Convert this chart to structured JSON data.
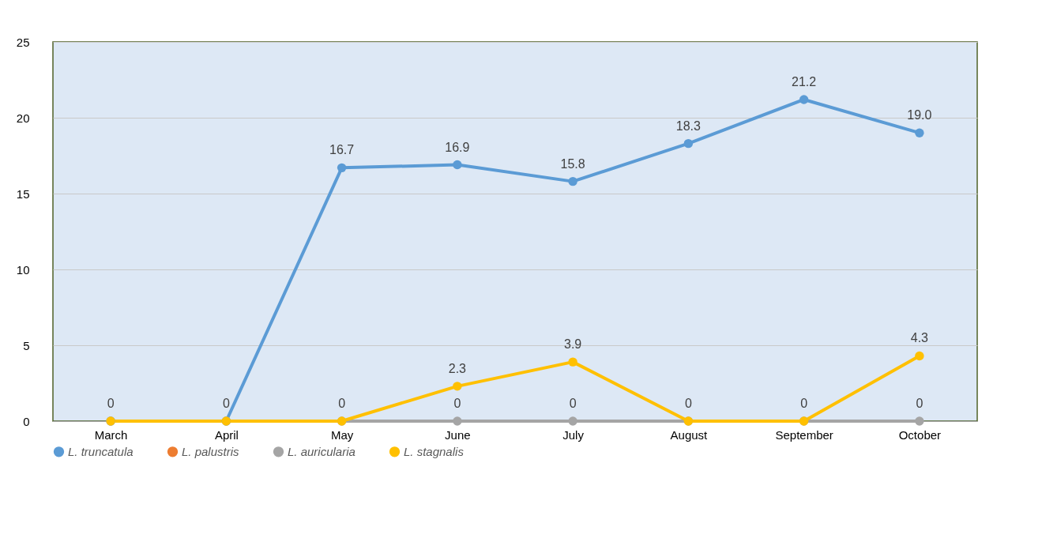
{
  "chart_data": {
    "type": "line",
    "categories": [
      "March",
      "April",
      "May",
      "June",
      "July",
      "August",
      "September",
      "October"
    ],
    "series": [
      {
        "name": "L. truncatula",
        "color": "#5b9bd5",
        "values": [
          0,
          0,
          16.7,
          16.9,
          15.8,
          18.3,
          21.2,
          19.0
        ],
        "value_labels": [
          null,
          null,
          "16.7",
          "16.9",
          "15.8",
          "18.3",
          "21.2",
          "19.0"
        ]
      },
      {
        "name": "L. palustris",
        "color": "#ed7d31",
        "values": [
          null,
          null,
          null,
          null,
          null,
          null,
          null,
          null
        ]
      },
      {
        "name": "L. auricularia",
        "color": "#a5a5a5",
        "values": [
          0,
          0,
          0,
          0,
          0,
          0,
          0,
          0
        ],
        "value_labels": [
          "0",
          "0",
          "0",
          "0",
          "0",
          "0",
          "0",
          "0"
        ]
      },
      {
        "name": "L. stagnalis",
        "color": "#ffc000",
        "values": [
          0,
          0,
          0,
          2.3,
          3.9,
          0,
          0,
          4.3
        ],
        "value_labels": [
          null,
          null,
          null,
          "2.3",
          "3.9",
          null,
          null,
          "4.3"
        ]
      }
    ],
    "ylim": [
      0,
      25
    ],
    "yticks": [
      0,
      5,
      10,
      15,
      20,
      25
    ],
    "grid": "y",
    "legend": "bottom",
    "marker": "circle"
  }
}
